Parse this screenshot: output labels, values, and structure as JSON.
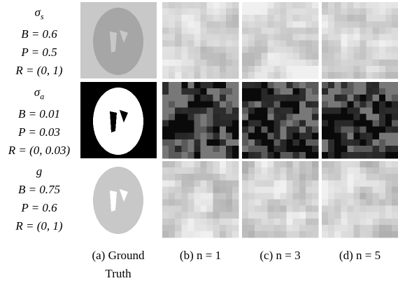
{
  "rows": [
    {
      "symbol": "σ",
      "subscript": "s",
      "lines": [
        "B = 0.6",
        "P = 0.5",
        "R = (0, 1)"
      ]
    },
    {
      "symbol": "σ",
      "subscript": "a",
      "lines": [
        "B = 0.01",
        "P = 0.03",
        "R = (0, 0.03)"
      ]
    },
    {
      "symbol": "g",
      "subscript": null,
      "lines": [
        "B = 0.75",
        "P = 0.6",
        "R = (0, 1)"
      ]
    }
  ],
  "captions": [
    "(a) Ground Truth",
    "(b) n = 1",
    "(c) n = 3",
    "(d) n = 5"
  ]
}
